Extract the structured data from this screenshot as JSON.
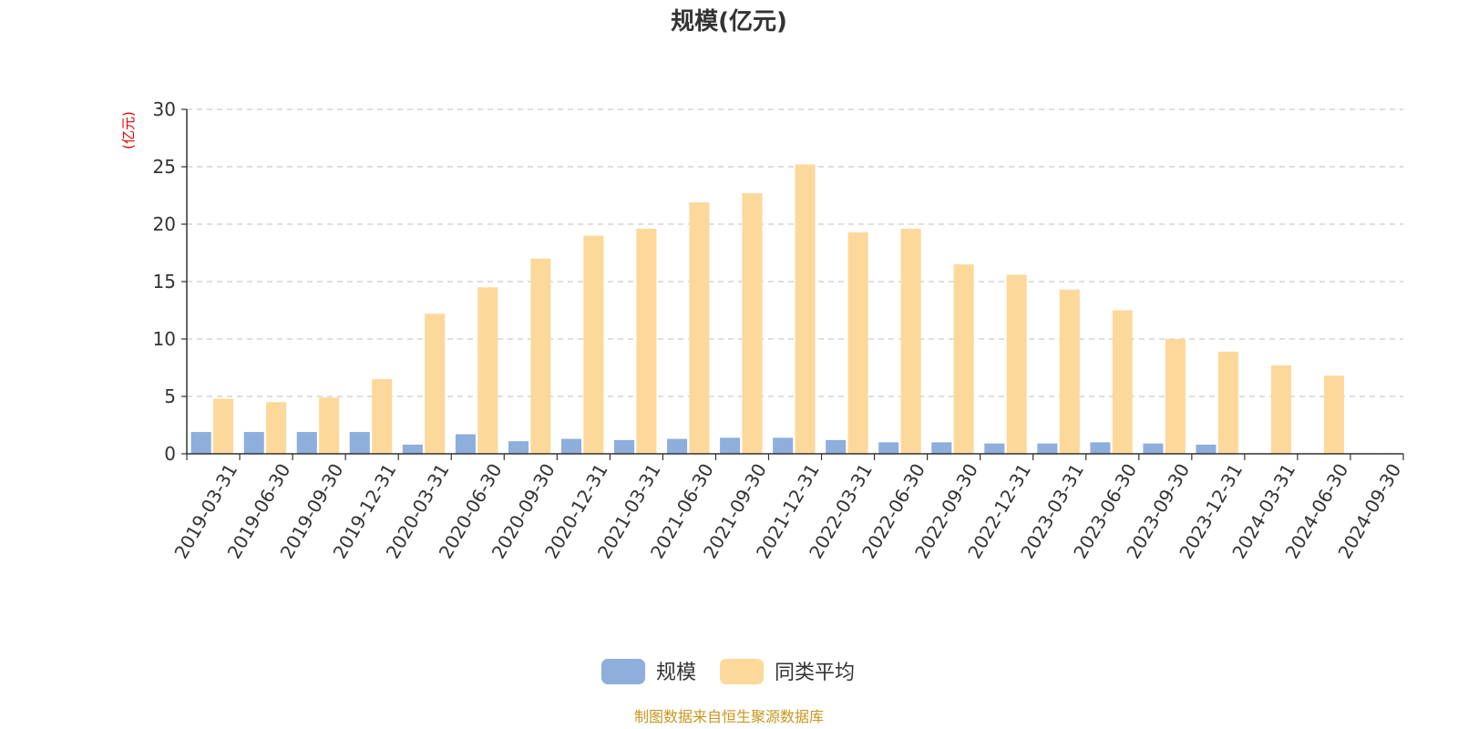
{
  "chart_data": {
    "type": "bar",
    "title": "规模(亿元)",
    "ylabel": "(亿元)",
    "xlabel": "",
    "ylim": [
      0,
      30
    ],
    "yticks": [
      0,
      5,
      10,
      15,
      20,
      25,
      30
    ],
    "grid": true,
    "legend_position": "bottom",
    "categories": [
      "2019-03-31",
      "2019-06-30",
      "2019-09-30",
      "2019-12-31",
      "2020-03-31",
      "2020-06-30",
      "2020-09-30",
      "2020-12-31",
      "2021-03-31",
      "2021-06-30",
      "2021-09-30",
      "2021-12-31",
      "2022-03-31",
      "2022-06-30",
      "2022-09-30",
      "2022-12-31",
      "2023-03-31",
      "2023-06-30",
      "2023-09-30",
      "2023-12-31",
      "2024-03-31",
      "2024-06-30",
      "2024-09-30"
    ],
    "series": [
      {
        "name": "规模",
        "color": "#8eaedc",
        "values": [
          1.9,
          1.9,
          1.9,
          1.9,
          0.8,
          1.7,
          1.1,
          1.3,
          1.2,
          1.3,
          1.4,
          1.4,
          1.2,
          1.0,
          1.0,
          0.9,
          0.9,
          1.0,
          0.9,
          0.8,
          0.0,
          0.0,
          0.0
        ]
      },
      {
        "name": "同类平均",
        "color": "#fdd89b",
        "values": [
          4.8,
          4.5,
          4.9,
          6.5,
          12.2,
          14.5,
          17.0,
          19.0,
          19.6,
          21.9,
          22.7,
          25.2,
          19.3,
          19.6,
          16.5,
          15.6,
          14.3,
          12.5,
          10.0,
          8.9,
          7.7,
          6.8,
          0.0
        ]
      }
    ]
  },
  "source": "制图数据来自恒生聚源数据库"
}
